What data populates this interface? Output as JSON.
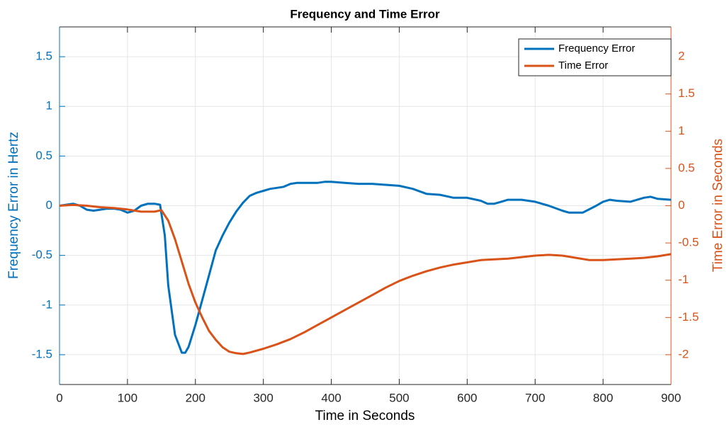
{
  "chart_data": {
    "type": "line",
    "title": "Frequency and Time Error",
    "x_label": "Time in Seconds",
    "y_label": "Frequency Error in Hertz",
    "y2_label": "Time Error in Seconds",
    "xlim": [
      0,
      900
    ],
    "xticks": [
      0,
      100,
      200,
      300,
      400,
      500,
      600,
      700,
      800,
      900
    ],
    "ylim": [
      -1.8,
      1.8
    ],
    "yticks": [
      -1.5,
      -1,
      -0.5,
      0,
      0.5,
      1,
      1.5
    ],
    "y2lim": [
      -2.4,
      2.4
    ],
    "y2ticks": [
      -2,
      -1.5,
      -1,
      -0.5,
      0,
      0.5,
      1,
      1.5,
      2
    ],
    "grid": true,
    "legend": "northeast",
    "y_color": "#0072bd",
    "y2_color": "#d95319",
    "series": [
      {
        "name": "Frequency Error",
        "color": "#0072bd",
        "x": [
          0,
          10,
          20,
          30,
          40,
          50,
          60,
          70,
          80,
          90,
          100,
          110,
          120,
          130,
          140,
          148,
          155,
          160,
          170,
          180,
          185,
          190,
          200,
          210,
          220,
          230,
          240,
          250,
          260,
          270,
          280,
          290,
          300,
          310,
          320,
          330,
          340,
          350,
          360,
          370,
          380,
          390,
          400,
          420,
          440,
          460,
          480,
          500,
          520,
          540,
          560,
          580,
          600,
          620,
          630,
          640,
          650,
          660,
          680,
          700,
          720,
          740,
          750,
          770,
          790,
          800,
          810,
          820,
          840,
          860,
          870,
          880,
          900
        ],
        "values": [
          0,
          0.01,
          0.02,
          0,
          -0.04,
          -0.05,
          -0.04,
          -0.03,
          -0.03,
          -0.04,
          -0.07,
          -0.05,
          0,
          0.02,
          0.02,
          0.01,
          -0.3,
          -0.8,
          -1.3,
          -1.48,
          -1.48,
          -1.42,
          -1.2,
          -0.95,
          -0.7,
          -0.45,
          -0.3,
          -0.17,
          -0.06,
          0.03,
          0.1,
          0.13,
          0.15,
          0.17,
          0.18,
          0.19,
          0.22,
          0.23,
          0.23,
          0.23,
          0.23,
          0.24,
          0.24,
          0.23,
          0.22,
          0.22,
          0.21,
          0.2,
          0.17,
          0.12,
          0.11,
          0.08,
          0.08,
          0.05,
          0.02,
          0.02,
          0.04,
          0.06,
          0.06,
          0.04,
          0,
          -0.05,
          -0.07,
          -0.07,
          0,
          0.04,
          0.06,
          0.05,
          0.04,
          0.08,
          0.09,
          0.07,
          0.06
        ]
      },
      {
        "name": "Time Error",
        "color": "#d95319",
        "axis": "y2",
        "x": [
          0,
          20,
          40,
          60,
          80,
          100,
          120,
          140,
          150,
          160,
          170,
          180,
          190,
          200,
          210,
          220,
          230,
          240,
          250,
          260,
          270,
          280,
          300,
          320,
          340,
          360,
          380,
          400,
          420,
          440,
          460,
          480,
          500,
          520,
          540,
          560,
          580,
          600,
          620,
          640,
          660,
          680,
          700,
          720,
          740,
          760,
          780,
          800,
          820,
          840,
          860,
          880,
          900
        ],
        "values": [
          0,
          0.01,
          0,
          -0.02,
          -0.03,
          -0.05,
          -0.08,
          -0.08,
          -0.06,
          -0.2,
          -0.45,
          -0.75,
          -1.05,
          -1.3,
          -1.5,
          -1.68,
          -1.8,
          -1.9,
          -1.96,
          -1.98,
          -1.99,
          -1.97,
          -1.92,
          -1.86,
          -1.79,
          -1.7,
          -1.6,
          -1.5,
          -1.4,
          -1.3,
          -1.2,
          -1.1,
          -1.01,
          -0.94,
          -0.88,
          -0.83,
          -0.79,
          -0.76,
          -0.73,
          -0.72,
          -0.71,
          -0.69,
          -0.67,
          -0.66,
          -0.67,
          -0.7,
          -0.73,
          -0.73,
          -0.72,
          -0.71,
          -0.7,
          -0.68,
          -0.65
        ]
      }
    ]
  }
}
